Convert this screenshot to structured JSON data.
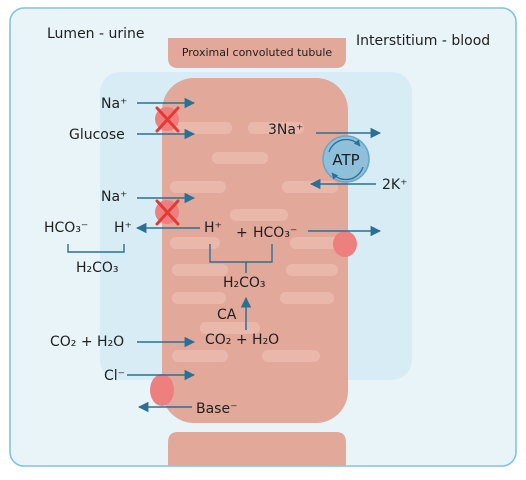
{
  "regions": {
    "lumen": "Lumen - urine",
    "interstitium": "Interstitium - blood",
    "cell": "Proximal convoluted tubule"
  },
  "labels": {
    "na_top": "Na⁺",
    "glucose": "Glucose",
    "three_na": "3Na⁺",
    "atp": "ATP",
    "two_k": "2K⁺",
    "na_mid": "Na⁺",
    "hco3_lumen": "HCO₃⁻",
    "h_lumen": "H⁺",
    "h2co3_lumen": "H₂CO₃",
    "h_cell": "H⁺",
    "plus": "+",
    "hco3_cell": "HCO₃⁻",
    "h2co3_cell": "H₂CO₃",
    "ca": "CA",
    "co2_h2o_lumen": "CO₂ + H₂O",
    "co2_h2o_cell": "CO₂ + H₂O",
    "cl": "Cl⁻",
    "base": "Base⁻"
  },
  "colors": {
    "frame": "#7fc4da",
    "background": "#e9f4f9",
    "inner_panel": "#d8ecf6",
    "cell": "#e2a99b",
    "cell_stripe": "#eab8ab",
    "arrow": "#2a7096",
    "blocked": "#e53935",
    "transporter": "#ee7f7f",
    "atp_fill": "#8ec0dc"
  }
}
